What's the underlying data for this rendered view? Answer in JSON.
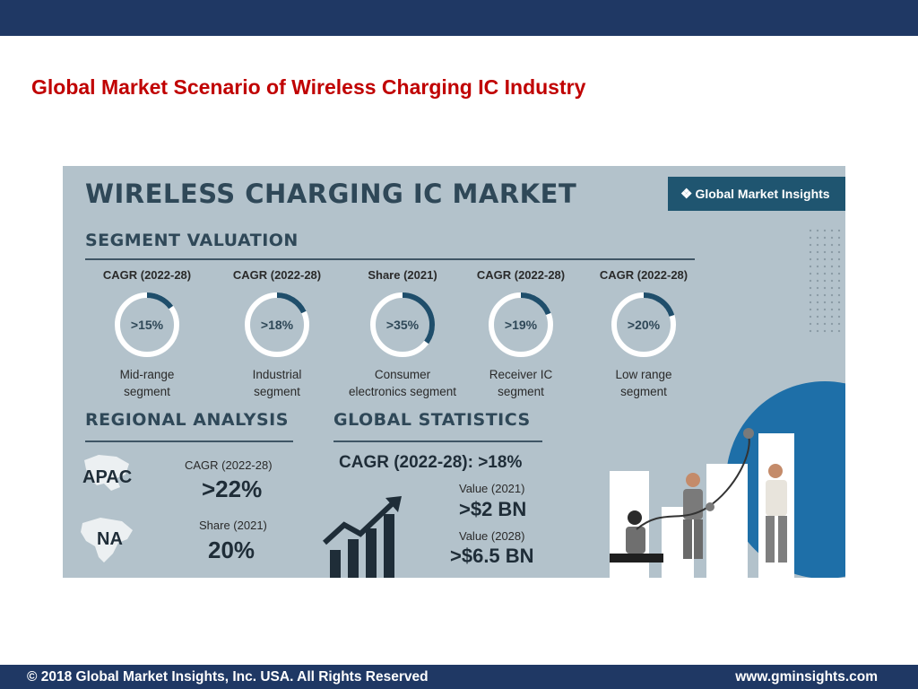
{
  "slide": {
    "title": "Global Market Scenario of Wireless Charging IC Industry"
  },
  "infographic": {
    "title": "WIRELESS CHARGING IC MARKET",
    "logo_text": "Global Market Insights",
    "segment_heading": "SEGMENT VALUATION",
    "segments": [
      {
        "caption": "CAGR (2022-28)",
        "value": ">15%",
        "label": "Mid-range\nsegment",
        "fraction": 0.15
      },
      {
        "caption": "CAGR (2022-28)",
        "value": ">18%",
        "label": "Industrial\nsegment",
        "fraction": 0.18
      },
      {
        "caption": "Share (2021)",
        "value": ">35%",
        "label": "Consumer\nelectronics segment",
        "fraction": 0.35
      },
      {
        "caption": "CAGR (2022-28)",
        "value": ">19%",
        "label": "Receiver IC\nsegment",
        "fraction": 0.19
      },
      {
        "caption": "CAGR (2022-28)",
        "value": ">20%",
        "label": "Low range\nsegment",
        "fraction": 0.2
      }
    ],
    "regional": {
      "heading": "REGIONAL ANALYSIS",
      "apac_label": "APAC",
      "apac_caption": "CAGR (2022-28)",
      "apac_value": ">22%",
      "na_label": "NA",
      "na_caption": "Share (2021)",
      "na_value": "20%"
    },
    "global": {
      "heading": "GLOBAL STATISTICS",
      "cagr": "CAGR (2022-28): >18%",
      "value_2021_caption": "Value (2021)",
      "value_2021": ">$2 BN",
      "value_2028_caption": "Value (2028)",
      "value_2028": ">$6.5 BN"
    },
    "colors": {
      "background": "#b3c2cb",
      "ring_track": "#ffffff",
      "ring_fill": "#1f4e6b",
      "accent_blue": "#1e6fa8"
    }
  },
  "footer": {
    "copyright": "© 2018 Global Market Insights, Inc. USA. All Rights Reserved",
    "website": "www.gminsights.com"
  }
}
